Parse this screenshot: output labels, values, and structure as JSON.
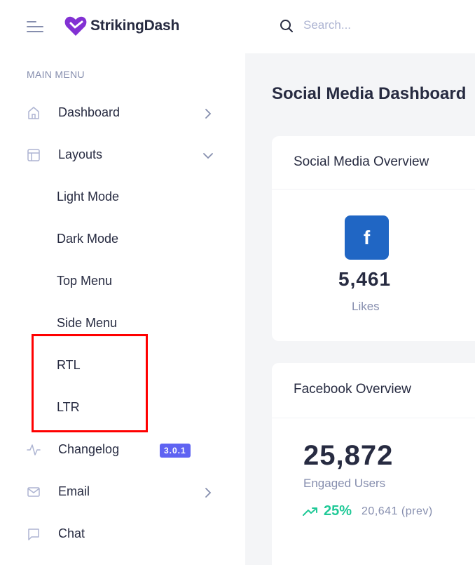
{
  "header": {
    "brand": "StrikingDash",
    "search_placeholder": "Search..."
  },
  "sidebar": {
    "section_title": "MAIN MENU",
    "items": [
      {
        "label": "Dashboard",
        "icon": "home-icon",
        "arrow": "chevron-right-icon"
      },
      {
        "label": "Layouts",
        "icon": "layout-icon",
        "arrow": "chevron-down-icon",
        "expanded": true
      },
      {
        "label": "Changelog",
        "icon": "activity-icon",
        "badge": "3.0.1"
      },
      {
        "label": "Email",
        "icon": "mail-icon",
        "arrow": "chevron-right-icon"
      },
      {
        "label": "Chat",
        "icon": "message-icon"
      }
    ],
    "layout_submenu": [
      "Light Mode",
      "Dark Mode",
      "Top Menu",
      "Side Menu",
      "RTL",
      "LTR"
    ]
  },
  "main": {
    "page_title": "Social Media Dashboard",
    "overview_card": {
      "title": "Social Media Overview",
      "stats": [
        {
          "icon": "facebook-icon",
          "value": "5,461",
          "label": "Likes"
        }
      ]
    },
    "facebook_card": {
      "title": "Facebook Overview",
      "engaged_value": "25,872",
      "engaged_label": "Engaged Users",
      "growth": "25%",
      "previous": "20,641 (prev)"
    }
  },
  "colors": {
    "accent": "#5f63f2",
    "facebook": "#2066c4",
    "success": "#20c997",
    "highlight": "#ff0000"
  }
}
